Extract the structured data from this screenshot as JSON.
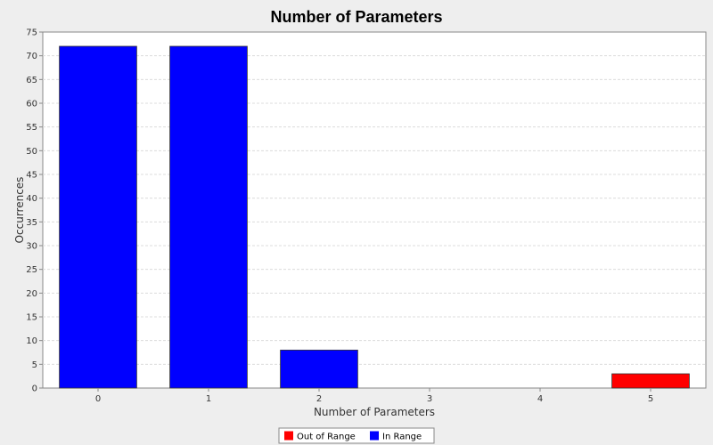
{
  "chart_data": {
    "type": "bar",
    "title": "Number of Parameters",
    "xlabel": "Number of Parameters",
    "ylabel": "Occurrences",
    "categories": [
      "0",
      "1",
      "2",
      "3",
      "4",
      "5"
    ],
    "series": [
      {
        "name": "Out of Range",
        "color": "#ff0000",
        "values": [
          0,
          0,
          0,
          0,
          0,
          3
        ]
      },
      {
        "name": "In Range",
        "color": "#0000ff",
        "values": [
          72,
          72,
          8,
          0,
          0,
          0
        ]
      }
    ],
    "ylim": [
      0,
      75
    ],
    "yticks": [
      0,
      5,
      10,
      15,
      20,
      25,
      30,
      35,
      40,
      45,
      50,
      55,
      60,
      65,
      70,
      75
    ],
    "grid": true,
    "legend_position": "bottom"
  }
}
